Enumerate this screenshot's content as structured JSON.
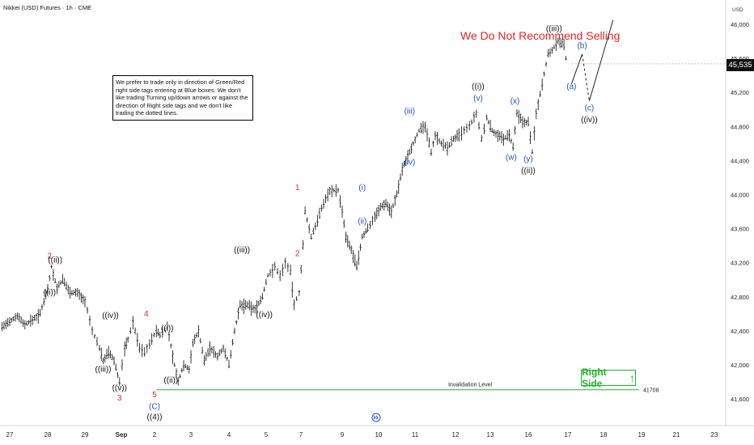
{
  "header": {
    "title": "Nikkei (USD) Futures · 1h · CME",
    "currency": "USD"
  },
  "note": {
    "text": "We prefer to trade only in direction of Green/Red right side tags entering at Blue boxes. We don't like trading Turning up/down arrows or against the direction of Right side tags and we don't like trading the dotted lines."
  },
  "warning": {
    "text": "We Do Not Recommend Selling"
  },
  "right_side_tag": {
    "label": "Right Side",
    "arrow": "↑",
    "color": "#1fb52c"
  },
  "last_price": {
    "label": "45,535"
  },
  "invalidation": {
    "label": "Invalidation Level",
    "value_label": "41708",
    "value": 41708,
    "color": "#1fb52c"
  },
  "replay_icon": "replay-icon",
  "colors": {
    "red": "#e8231f",
    "blue": "#1a52c8",
    "black": "#111111",
    "green": "#1fb52c",
    "bars": "#222222"
  },
  "chart_data": {
    "type": "line",
    "title": "Nikkei (USD) Futures · 1h · CME",
    "xlabel": "",
    "ylabel": "USD",
    "ylim": [
      41400,
      46250
    ],
    "grid": false,
    "y_ticks": [
      {
        "value": 41600,
        "label": "41,600"
      },
      {
        "value": 42000,
        "label": "42,000"
      },
      {
        "value": 42400,
        "label": "42,400"
      },
      {
        "value": 42800,
        "label": "42,800"
      },
      {
        "value": 43200,
        "label": "43,200"
      },
      {
        "value": 43600,
        "label": "43,600"
      },
      {
        "value": 44000,
        "label": "44,000"
      },
      {
        "value": 44400,
        "label": "44,400"
      },
      {
        "value": 44800,
        "label": "44,800"
      },
      {
        "value": 45200,
        "label": "45,200"
      },
      {
        "value": 45600,
        "label": "45,600"
      },
      {
        "value": 46000,
        "label": "46,000"
      }
    ],
    "x_ticks": [
      {
        "t": 0,
        "label": "27"
      },
      {
        "t": 1,
        "label": "28"
      },
      {
        "t": 2,
        "label": "29"
      },
      {
        "t": 3,
        "label": "Sep"
      },
      {
        "t": 4,
        "label": "2"
      },
      {
        "t": 5,
        "label": "3"
      },
      {
        "t": 6,
        "label": "4"
      },
      {
        "t": 7,
        "label": "5"
      },
      {
        "t": 8,
        "label": "7"
      },
      {
        "t": 9,
        "label": "9"
      },
      {
        "t": 10,
        "label": "10"
      },
      {
        "t": 11,
        "label": "11"
      },
      {
        "t": 12,
        "label": "12"
      },
      {
        "t": 13,
        "label": "13"
      },
      {
        "t": 14,
        "label": "16"
      },
      {
        "t": 15,
        "label": "17"
      },
      {
        "t": 16,
        "label": "18"
      },
      {
        "t": 17,
        "label": "19"
      },
      {
        "t": 18,
        "label": "21"
      },
      {
        "t": 19,
        "label": "23"
      }
    ],
    "series": [
      {
        "points": [
          [
            -0.2,
            42450
          ],
          [
            0.0,
            42500
          ],
          [
            0.2,
            42580
          ],
          [
            0.4,
            42470
          ],
          [
            0.6,
            42530
          ],
          [
            0.8,
            42600
          ],
          [
            1.0,
            42900
          ],
          [
            1.1,
            43150
          ],
          [
            1.25,
            42900
          ],
          [
            1.4,
            43000
          ],
          [
            1.6,
            42850
          ],
          [
            1.8,
            42850
          ],
          [
            2.0,
            42750
          ],
          [
            2.2,
            42400
          ],
          [
            2.4,
            42200
          ],
          [
            2.5,
            42050
          ],
          [
            2.65,
            42150
          ],
          [
            2.8,
            42050
          ],
          [
            2.95,
            41800
          ],
          [
            3.1,
            42200
          ],
          [
            3.2,
            42300
          ],
          [
            3.35,
            42500
          ],
          [
            3.55,
            42200
          ],
          [
            3.7,
            42150
          ],
          [
            3.85,
            42250
          ],
          [
            4.05,
            42400
          ],
          [
            4.15,
            42350
          ],
          [
            4.35,
            42450
          ],
          [
            4.5,
            42100
          ],
          [
            4.65,
            41800
          ],
          [
            4.8,
            42000
          ],
          [
            4.95,
            41950
          ],
          [
            5.05,
            42250
          ],
          [
            5.2,
            42400
          ],
          [
            5.35,
            42050
          ],
          [
            5.5,
            42200
          ],
          [
            5.7,
            42100
          ],
          [
            5.85,
            42200
          ],
          [
            6.0,
            42000
          ],
          [
            6.15,
            42400
          ],
          [
            6.3,
            42700
          ],
          [
            6.5,
            42700
          ],
          [
            6.7,
            42650
          ],
          [
            6.9,
            42800
          ],
          [
            7.05,
            43050
          ],
          [
            7.25,
            43150
          ],
          [
            7.4,
            43050
          ],
          [
            7.55,
            43200
          ],
          [
            7.7,
            43100
          ],
          [
            7.8,
            42700
          ],
          [
            7.95,
            42850
          ],
          [
            8.05,
            43400
          ],
          [
            8.1,
            43800
          ],
          [
            8.25,
            43500
          ],
          [
            8.4,
            43700
          ],
          [
            8.55,
            43900
          ],
          [
            8.7,
            44050
          ],
          [
            8.9,
            44050
          ],
          [
            9.0,
            43800
          ],
          [
            9.1,
            43500
          ],
          [
            9.25,
            43350
          ],
          [
            9.4,
            43150
          ],
          [
            9.55,
            43500
          ],
          [
            9.7,
            43600
          ],
          [
            9.9,
            43750
          ],
          [
            10.05,
            43850
          ],
          [
            10.2,
            43900
          ],
          [
            10.35,
            43800
          ],
          [
            10.5,
            44000
          ],
          [
            10.65,
            44300
          ],
          [
            10.8,
            44450
          ],
          [
            10.95,
            44600
          ],
          [
            11.1,
            44750
          ],
          [
            11.25,
            44800
          ],
          [
            11.4,
            44500
          ],
          [
            11.5,
            44700
          ],
          [
            11.65,
            44600
          ],
          [
            11.8,
            44550
          ],
          [
            11.95,
            44650
          ],
          [
            12.1,
            44700
          ],
          [
            12.25,
            44750
          ],
          [
            12.4,
            44800
          ],
          [
            12.6,
            44950
          ],
          [
            12.75,
            44650
          ],
          [
            12.9,
            44900
          ],
          [
            13.05,
            44750
          ],
          [
            13.2,
            44700
          ],
          [
            13.35,
            44650
          ],
          [
            13.5,
            44700
          ],
          [
            13.6,
            44550
          ],
          [
            13.7,
            44950
          ],
          [
            13.85,
            44850
          ],
          [
            14.0,
            44850
          ],
          [
            14.1,
            44500
          ],
          [
            14.2,
            44950
          ],
          [
            14.35,
            45300
          ],
          [
            14.5,
            45650
          ],
          [
            14.6,
            45700
          ],
          [
            14.75,
            45800
          ],
          [
            14.9,
            45750
          ],
          [
            15.0,
            45450
          ],
          [
            15.1,
            45300
          ],
          [
            15.4,
            45650
          ],
          [
            15.6,
            45100
          ]
        ],
        "dotted_projection": [
          [
            15.1,
            45300
          ],
          [
            15.4,
            45650
          ],
          [
            15.6,
            45100
          ]
        ],
        "solid_projection": [
          [
            15.6,
            45100
          ],
          [
            16.25,
            46050
          ]
        ]
      }
    ],
    "wave_labels": [
      {
        "text": "2",
        "x": 1.05,
        "y": 43250,
        "color": "red"
      },
      {
        "text": "((ii))",
        "x": 1.2,
        "y": 43200,
        "color": "black"
      },
      {
        "text": "((i))",
        "x": 1.05,
        "y": 42820,
        "color": "black"
      },
      {
        "text": "((iv))",
        "x": 2.7,
        "y": 42550,
        "color": "black"
      },
      {
        "text": "((iii))",
        "x": 2.5,
        "y": 41920,
        "color": "black"
      },
      {
        "text": "((v))",
        "x": 2.95,
        "y": 41700,
        "color": "black"
      },
      {
        "text": "3",
        "x": 2.95,
        "y": 41580,
        "color": "red"
      },
      {
        "text": "4",
        "x": 3.75,
        "y": 42570,
        "color": "red"
      },
      {
        "text": "((i))",
        "x": 4.35,
        "y": 42400,
        "color": "black"
      },
      {
        "text": "((ii))",
        "x": 4.45,
        "y": 41790,
        "color": "black"
      },
      {
        "text": "5",
        "x": 4.0,
        "y": 41620,
        "color": "red"
      },
      {
        "text": "(C)",
        "x": 4.0,
        "y": 41480,
        "color": "blue"
      },
      {
        "text": "((4))",
        "x": 4.0,
        "y": 41360,
        "color": "black"
      },
      {
        "text": "((iii))",
        "x": 6.35,
        "y": 43320,
        "color": "black"
      },
      {
        "text": "((iv))",
        "x": 6.95,
        "y": 42560,
        "color": "black"
      },
      {
        "text": "1",
        "x": 7.9,
        "y": 44050,
        "color": "red"
      },
      {
        "text": "2",
        "x": 7.9,
        "y": 43280,
        "color": "red"
      },
      {
        "text": "(i)",
        "x": 9.55,
        "y": 44050,
        "color": "blue"
      },
      {
        "text": "(ii)",
        "x": 9.55,
        "y": 43660,
        "color": "blue"
      },
      {
        "text": "(iii)",
        "x": 10.85,
        "y": 44950,
        "color": "blue"
      },
      {
        "text": "(iv)",
        "x": 10.85,
        "y": 44350,
        "color": "blue"
      },
      {
        "text": "((i))",
        "x": 12.65,
        "y": 45240,
        "color": "black"
      },
      {
        "text": "(v)",
        "x": 12.65,
        "y": 45100,
        "color": "blue"
      },
      {
        "text": "(x)",
        "x": 13.65,
        "y": 45070,
        "color": "blue"
      },
      {
        "text": "(w)",
        "x": 13.55,
        "y": 44410,
        "color": "blue"
      },
      {
        "text": "(y)",
        "x": 14.0,
        "y": 44390,
        "color": "blue"
      },
      {
        "text": "((ii))",
        "x": 14.0,
        "y": 44250,
        "color": "black"
      },
      {
        "text": "((iii))",
        "x": 14.65,
        "y": 45920,
        "color": "black"
      },
      {
        "text": "(b)",
        "x": 15.4,
        "y": 45720,
        "color": "blue"
      },
      {
        "text": "(a)",
        "x": 15.1,
        "y": 45240,
        "color": "blue"
      },
      {
        "text": "(c)",
        "x": 15.6,
        "y": 44990,
        "color": "blue"
      },
      {
        "text": "((iv))",
        "x": 15.6,
        "y": 44850,
        "color": "black"
      }
    ]
  }
}
